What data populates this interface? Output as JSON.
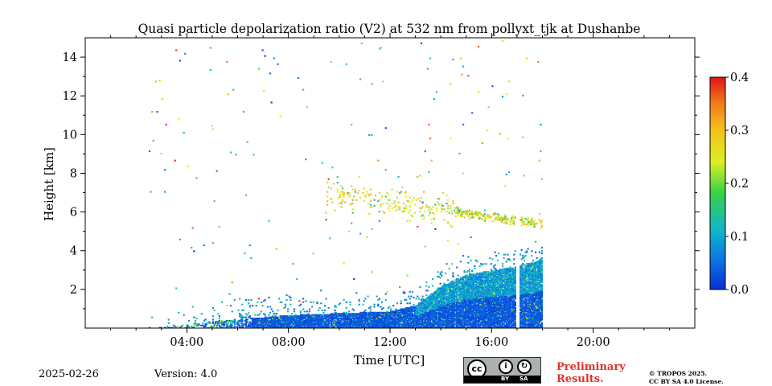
{
  "chart_data": {
    "type": "heatmap",
    "title": "Quasi particle depolarization ratio (V2) at 532 nm from pollyxt_tjk at Dushanbe",
    "xlabel": "Time [UTC]",
    "ylabel": "Height [km]",
    "xlim_hours": [
      0,
      24
    ],
    "ylim_km": [
      0,
      15
    ],
    "x_ticks": [
      {
        "h": 4,
        "label": "04:00"
      },
      {
        "h": 8,
        "label": "08:00"
      },
      {
        "h": 12,
        "label": "12:00"
      },
      {
        "h": 16,
        "label": "16:00"
      },
      {
        "h": 20,
        "label": "20:00"
      }
    ],
    "y_ticks": [
      {
        "v": 2,
        "label": "2"
      },
      {
        "v": 4,
        "label": "4"
      },
      {
        "v": 6,
        "label": "6"
      },
      {
        "v": 8,
        "label": "8"
      },
      {
        "v": 10,
        "label": "10"
      },
      {
        "v": 12,
        "label": "12"
      },
      {
        "v": 14,
        "label": "14"
      }
    ],
    "colorbar": {
      "min": 0.0,
      "max": 0.4,
      "ticks": [
        {
          "v": 0.0,
          "label": "0.0"
        },
        {
          "v": 0.1,
          "label": "0.1"
        },
        {
          "v": 0.2,
          "label": "0.2"
        },
        {
          "v": 0.3,
          "label": "0.3"
        },
        {
          "v": 0.4,
          "label": "0.4"
        }
      ]
    },
    "data_start_hour": 2.5,
    "data_end_hour": 18.0,
    "gap_hours": [
      16.95,
      17.1
    ],
    "boundary_layer_top_km": [
      [
        5.0,
        0.4
      ],
      [
        6.0,
        0.5
      ],
      [
        7.0,
        0.6
      ],
      [
        8.0,
        0.7
      ],
      [
        10.0,
        0.8
      ],
      [
        12.0,
        0.9
      ],
      [
        13.0,
        1.2
      ],
      [
        14.0,
        2.2
      ],
      [
        15.0,
        2.8
      ],
      [
        16.0,
        3.0
      ],
      [
        17.0,
        3.2
      ],
      [
        18.0,
        3.6
      ]
    ],
    "aerosol_layer": {
      "start_h": 9.5,
      "end_h": 18.0,
      "center_km_start": 7.0,
      "center_km_end": 5.4,
      "depol_range": [
        0.22,
        0.32
      ]
    }
  },
  "footer": {
    "date": "2025-02-26",
    "version": "Version: 4.0",
    "preliminary_line1": "Preliminary",
    "preliminary_line2": "Results.",
    "license_line1": "© TROPOS 2025.",
    "license_line2": "CC BY SA 4.0 License.",
    "cc_badge_by": "BY",
    "cc_badge_sa": "SA",
    "cc_badge_main": "cc"
  },
  "colors": {
    "low": "#0b3fd6",
    "mid": "#14b8a6",
    "high": "#e8c21a",
    "max": "#e3321c"
  }
}
